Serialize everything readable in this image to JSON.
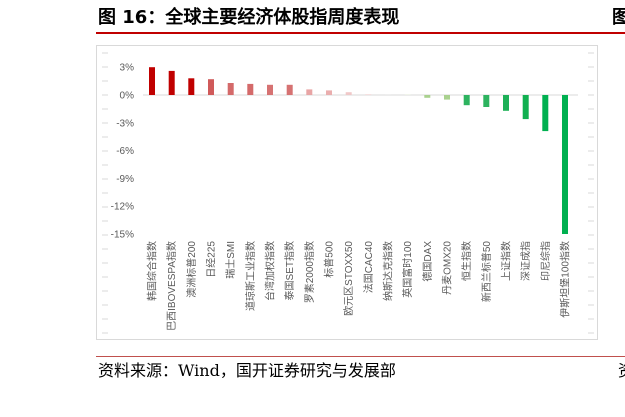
{
  "figure": {
    "source": "资料来源：Wind，国开证券研究与发展部",
    "edge_fragment_top": "图",
    "edge_fragment_bottom": "资"
  },
  "colors": {
    "title_text": "#000000",
    "title_rule": "#C00000",
    "source_rule": "#C0504D",
    "axis_text": "#595959",
    "frame": "#D9D9D9",
    "zero_line": "#D9D9D9"
  },
  "chart_data": {
    "type": "bar",
    "title": "图 16：全球主要经济体股指周度表现",
    "xlabel": "",
    "ylabel": "",
    "unit": "%",
    "ylim": [
      -15,
      3
    ],
    "yticks": [
      3,
      0,
      -3,
      -6,
      -9,
      -12,
      -15
    ],
    "ytick_labels": [
      "3%",
      "0%",
      "-3%",
      "-6%",
      "-9%",
      "-12%",
      "-15%"
    ],
    "grid": false,
    "legend": "none",
    "categories": [
      "韩国综合指数",
      "巴西IBOVESPA指数",
      "澳洲标普200",
      "日经225",
      "瑞士SMI",
      "道琼斯工业指数",
      "台湾加权指数",
      "泰国SET指数",
      "罗素2000指数",
      "标普500",
      "欧元区STOXX50",
      "法国CAC40",
      "纳斯达克指数",
      "英国富时100",
      "德国DAX",
      "丹麦OMX20",
      "恒生指数",
      "新西兰标普50",
      "上证指数",
      "深证成指",
      "印尼综指",
      "伊斯坦堡100指数"
    ],
    "values": [
      3.0,
      2.6,
      1.8,
      1.7,
      1.3,
      1.2,
      1.1,
      1.1,
      0.6,
      0.5,
      0.3,
      0.1,
      0.1,
      0.1,
      -0.3,
      -0.5,
      -1.1,
      -1.3,
      -1.7,
      -2.6,
      -3.9,
      -15.0
    ],
    "bar_colors": [
      "#C00000",
      "#C00000",
      "#C00000",
      "#D05A5A",
      "#D46A6A",
      "#D46A6A",
      "#D67272",
      "#D67272",
      "#E8A5A5",
      "#EAAEAE",
      "#F0C8C8",
      "#F5DCDC",
      "#EDEDED",
      "#EEF3E8",
      "#A9D18E",
      "#A9D18E",
      "#2DB35F",
      "#2DB35F",
      "#1DB057",
      "#10B050",
      "#00B050",
      "#00B050"
    ]
  }
}
